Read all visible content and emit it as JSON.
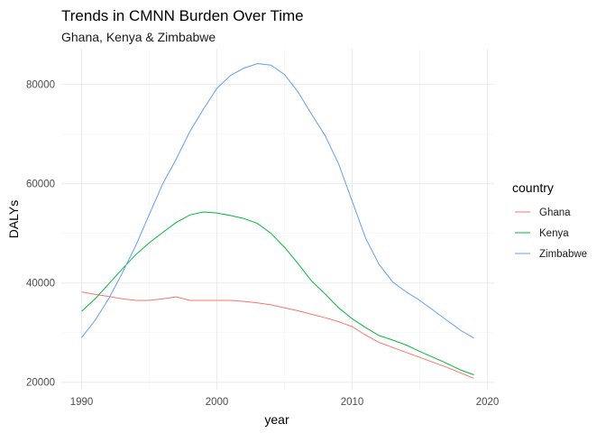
{
  "chart_data": {
    "type": "line",
    "title": "Trends in CMNN Burden Over Time",
    "subtitle": "Ghana, Kenya & Zimbabwe",
    "xlabel": "year",
    "ylabel": "DALYs",
    "xlim": [
      1988.5,
      2020.5
    ],
    "ylim": [
      18500,
      87200
    ],
    "x_ticks": [
      1990,
      2000,
      2010,
      2020
    ],
    "x_ticks_minor": [
      1995,
      2005,
      2015
    ],
    "y_ticks": [
      20000,
      40000,
      60000,
      80000
    ],
    "y_ticks_minor": [
      30000,
      50000,
      70000
    ],
    "x_tick_labels": [
      "1990",
      "2000",
      "2010",
      "2020"
    ],
    "y_tick_labels": [
      "20000",
      "40000",
      "60000",
      "80000"
    ],
    "grid": true,
    "legend": {
      "title": "country",
      "position": "right"
    },
    "x": [
      1990,
      1991,
      1992,
      1993,
      1994,
      1995,
      1996,
      1997,
      1998,
      1999,
      2000,
      2001,
      2002,
      2003,
      2004,
      2005,
      2006,
      2007,
      2008,
      2009,
      2010,
      2011,
      2012,
      2013,
      2014,
      2015,
      2016,
      2017,
      2018,
      2019
    ],
    "series": [
      {
        "name": "Ghana",
        "color": "#F8766D",
        "values": [
          38200,
          37700,
          37300,
          36800,
          36500,
          36500,
          36800,
          37200,
          36500,
          36500,
          36500,
          36500,
          36300,
          36000,
          35600,
          35000,
          34400,
          33700,
          33000,
          32200,
          31200,
          29500,
          28000,
          27000,
          26000,
          25000,
          24000,
          23000,
          21900,
          20800
        ]
      },
      {
        "name": "Kenya",
        "color": "#00BA38",
        "values": [
          34300,
          36800,
          39800,
          42800,
          45700,
          48100,
          50200,
          52200,
          53700,
          54300,
          54100,
          53600,
          53000,
          52000,
          50000,
          47200,
          43900,
          40400,
          37800,
          35000,
          32800,
          31000,
          29400,
          28500,
          27500,
          26200,
          25000,
          23800,
          22500,
          21500
        ]
      },
      {
        "name": "Zimbabwe",
        "color": "#619CFF",
        "values": [
          29000,
          32500,
          36800,
          42000,
          47500,
          53800,
          60000,
          65000,
          70500,
          75000,
          79200,
          81800,
          83300,
          84200,
          83900,
          82000,
          78500,
          74000,
          69700,
          64000,
          56500,
          49000,
          43700,
          40200,
          38200,
          36500,
          34500,
          32500,
          30500,
          28900
        ]
      }
    ]
  }
}
